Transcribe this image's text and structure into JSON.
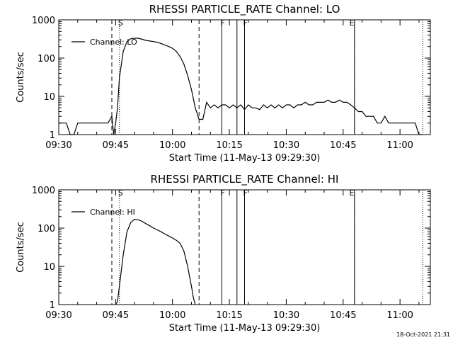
{
  "footer": {
    "timestamp": "18-Oct-2021 21:31"
  },
  "chart_data": [
    {
      "type": "line",
      "title": "RHESSI PARTICLE_RATE Channel: LO",
      "xlabel": "Start Time (11-May-13 09:29:30)",
      "ylabel": "Counts/sec",
      "y_scale": "log",
      "ylim": [
        1,
        1000
      ],
      "xlim": [
        "09:30",
        "11:08"
      ],
      "x_ticks": [
        "09:30",
        "09:45",
        "10:00",
        "10:15",
        "10:30",
        "10:45",
        "11:00"
      ],
      "y_ticks": [
        "1",
        "10",
        "100",
        "1000"
      ],
      "legend": {
        "position": "top-left",
        "entries": [
          "Channel: LO"
        ]
      },
      "annotations": [
        {
          "label": "S",
          "x": "09:46"
        },
        {
          "label": "F",
          "x": "10:13"
        },
        {
          "label": "F",
          "x": "10:19"
        },
        {
          "label": "E",
          "x": "10:47"
        }
      ],
      "vertical_lines": {
        "dashed": [
          "09:44",
          "10:07"
        ],
        "dotted": [
          "09:46",
          "10:48",
          "11:06"
        ],
        "solid": [
          "10:13",
          "10:17",
          "10:19",
          "10:48"
        ]
      },
      "series": [
        {
          "name": "Channel: LO",
          "x": [
            "09:30",
            "09:31",
            "09:32",
            "09:33",
            "09:34",
            "09:35",
            "09:36",
            "09:37",
            "09:38",
            "09:39",
            "09:40",
            "09:41",
            "09:42",
            "09:43",
            "09:44",
            "09:44:30",
            "09:45",
            "09:45:30",
            "09:46",
            "09:47",
            "09:48",
            "09:49",
            "09:50",
            "09:51",
            "09:52",
            "09:53",
            "09:54",
            "09:55",
            "09:56",
            "09:57",
            "09:58",
            "09:59",
            "10:00",
            "10:01",
            "10:02",
            "10:03",
            "10:04",
            "10:05",
            "10:06",
            "10:07",
            "10:08",
            "10:09",
            "10:10",
            "10:11",
            "10:12",
            "10:13",
            "10:14",
            "10:15",
            "10:16",
            "10:17",
            "10:18",
            "10:19",
            "10:20",
            "10:21",
            "10:22",
            "10:23",
            "10:24",
            "10:25",
            "10:26",
            "10:27",
            "10:28",
            "10:29",
            "10:30",
            "10:31",
            "10:32",
            "10:33",
            "10:34",
            "10:35",
            "10:36",
            "10:37",
            "10:38",
            "10:39",
            "10:40",
            "10:41",
            "10:42",
            "10:43",
            "10:44",
            "10:45",
            "10:46",
            "10:47",
            "10:48",
            "10:49",
            "10:50",
            "10:51",
            "10:52",
            "10:53",
            "10:54",
            "10:55",
            "10:56",
            "10:57",
            "10:58",
            "10:59",
            "11:00",
            "11:01",
            "11:02",
            "11:03",
            "11:04",
            "11:05",
            "11:06"
          ],
          "values": [
            2,
            2,
            2,
            1,
            1,
            2,
            2,
            2,
            2,
            2,
            2,
            2,
            2,
            2,
            3,
            1,
            2,
            5,
            30,
            150,
            270,
            320,
            330,
            330,
            310,
            290,
            280,
            270,
            260,
            240,
            220,
            200,
            180,
            150,
            110,
            70,
            35,
            15,
            5,
            2.5,
            2.5,
            7,
            5,
            6,
            5,
            6,
            6,
            5,
            6,
            5,
            6,
            4.5,
            6,
            5,
            5,
            4.5,
            6,
            5,
            6,
            5,
            6,
            5,
            6,
            6,
            5,
            6,
            6,
            7,
            6,
            6,
            7,
            7,
            7,
            8,
            7,
            7,
            8,
            7,
            7,
            6,
            5,
            4,
            4,
            3,
            3,
            3,
            2,
            2,
            3,
            2,
            2,
            2,
            2,
            2,
            2,
            2,
            2,
            1,
            1
          ]
        }
      ]
    },
    {
      "type": "line",
      "title": "RHESSI PARTICLE_RATE Channel: HI",
      "xlabel": "Start Time (11-May-13 09:29:30)",
      "ylabel": "Counts/sec",
      "y_scale": "log",
      "ylim": [
        1,
        1000
      ],
      "xlim": [
        "09:30",
        "11:08"
      ],
      "x_ticks": [
        "09:30",
        "09:45",
        "10:00",
        "10:15",
        "10:30",
        "10:45",
        "11:00"
      ],
      "y_ticks": [
        "1",
        "10",
        "100",
        "1000"
      ],
      "legend": {
        "position": "top-left",
        "entries": [
          "Channel: HI"
        ]
      },
      "annotations": [
        {
          "label": "S",
          "x": "09:46"
        },
        {
          "label": "F",
          "x": "10:13"
        },
        {
          "label": "F",
          "x": "10:19"
        },
        {
          "label": "E",
          "x": "10:47"
        }
      ],
      "vertical_lines": {
        "dashed": [
          "09:44",
          "10:07"
        ],
        "dotted": [
          "09:46",
          "10:48",
          "11:06"
        ],
        "solid": [
          "10:13",
          "10:17",
          "10:19",
          "10:48"
        ]
      },
      "series": [
        {
          "name": "Channel: HI",
          "x": [
            "09:45",
            "09:45:30",
            "09:46",
            "09:47",
            "09:48",
            "09:49",
            "09:50",
            "09:51",
            "09:52",
            "09:53",
            "09:54",
            "09:55",
            "09:56",
            "09:57",
            "09:58",
            "09:59",
            "10:00",
            "10:01",
            "10:02",
            "10:03",
            "10:04",
            "10:05",
            "10:05:30",
            "10:06"
          ],
          "values": [
            1,
            1.2,
            3,
            20,
            80,
            140,
            170,
            165,
            150,
            130,
            115,
            100,
            90,
            80,
            70,
            62,
            55,
            48,
            40,
            25,
            10,
            3,
            1.5,
            1
          ]
        }
      ]
    }
  ]
}
